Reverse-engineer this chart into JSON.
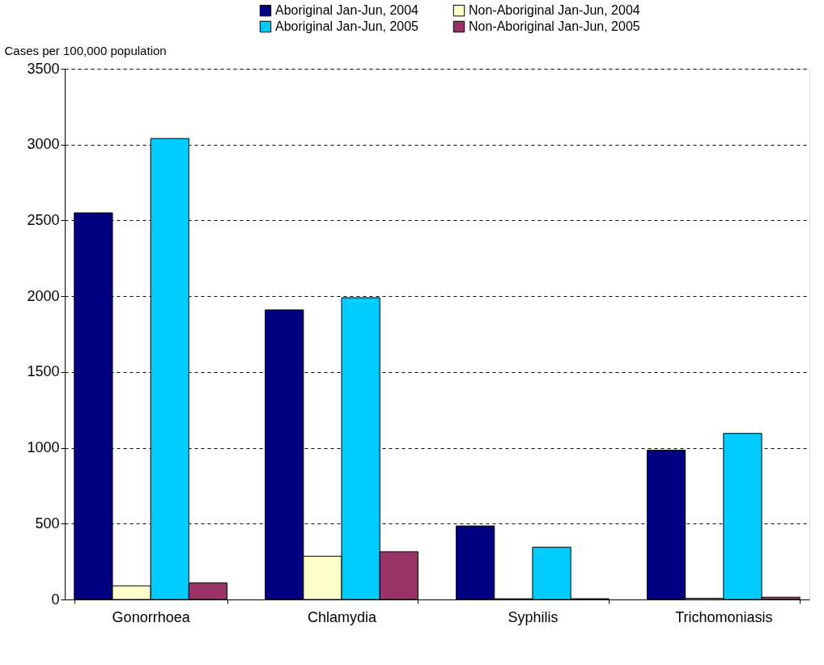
{
  "chart_data": {
    "type": "bar",
    "ylabel": "Cases per 100,000 population",
    "categories": [
      "Gonorrhoea",
      "Chlamydia",
      "Syphilis",
      "Trichomoniasis"
    ],
    "series": [
      {
        "name": "Aboriginal Jan-Jun, 2004",
        "color": "#000080",
        "values": [
          2550,
          1910,
          485,
          985
        ]
      },
      {
        "name": "Non-Aboriginal Jan-Jun, 2004",
        "color": "#ffffcc",
        "values": [
          90,
          285,
          5,
          8
        ]
      },
      {
        "name": "Aboriginal Jan-Jun, 2005",
        "color": "#00ccff",
        "values": [
          3040,
          1990,
          345,
          1095
        ]
      },
      {
        "name": "Non-Aboriginal Jan-Jun, 2005",
        "color": "#993366",
        "values": [
          110,
          315,
          5,
          15
        ]
      }
    ],
    "ylim": [
      0,
      3500
    ],
    "yticks": [
      0,
      500,
      1000,
      1500,
      2000,
      2500,
      3000,
      3500
    ],
    "grid": "y",
    "legend": "top"
  }
}
